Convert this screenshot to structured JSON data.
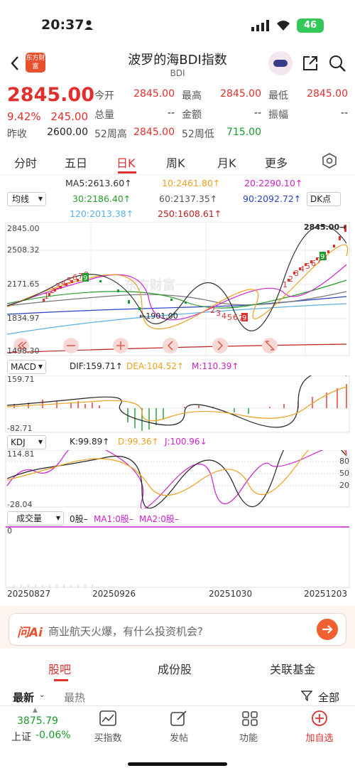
{
  "status": {
    "time": "20:37",
    "battery": "46"
  },
  "header": {
    "title": "波罗的海BDI指数",
    "subtitle": "BDI",
    "logo": "东方财富"
  },
  "quote": {
    "price": "2845.00",
    "pct": "9.42%",
    "change": "245.00",
    "prev_close_label": "昨收",
    "prev_close": "2600.00",
    "open_label": "今开",
    "open": "2845.00",
    "high_label": "最高",
    "high": "2845.00",
    "low_label": "最低",
    "low": "2845.00",
    "volume_label": "总量",
    "volume": "--",
    "amount_label": "金额",
    "amount": "--",
    "amplitude_label": "振幅",
    "amplitude": "--",
    "w52h_label": "52周高",
    "w52h": "2845.00",
    "w52l_label": "52周低",
    "w52l": "715.00"
  },
  "tabs": [
    "分时",
    "五日",
    "日K",
    "周K",
    "月K",
    "更多"
  ],
  "ma": {
    "ma5": "MA5:2613.60↑",
    "ma10": "10:2461.80↑",
    "ma20": "20:2290.10↑",
    "ma30": "30:2186.40↑",
    "ma60": "60:2137.35↑",
    "ma90": "90:2092.72↑",
    "ma120": "120:2013.38↑",
    "ma250": "250:1608.61↑",
    "select": "均线",
    "dk": "DK点"
  },
  "price_axis": {
    "top": "2845.00",
    "v2": "2508.32",
    "v3": "2171.65",
    "v4": "1834.97",
    "bottom": "1498.30",
    "hi_marker": "2845.00→",
    "lo_marker": "←1901.00"
  },
  "macd": {
    "select": "MACD",
    "dif": "DIF:159.71↑",
    "dea": "DEA:104.52↑",
    "m": "M:110.39↑",
    "top": "159.71",
    "bottom": "-82.71"
  },
  "kdj": {
    "select": "KDJ",
    "k": "K:99.89↑",
    "d": "D:99.36↑",
    "j": "J:100.96↓",
    "top": "114.81",
    "bottom": "-28.04",
    "l80": "80",
    "l50": "50",
    "l20": "20"
  },
  "vol": {
    "select": "成交量",
    "v": "0股–",
    "ma1": "MA1:0股–",
    "ma2": "MA2:0股–",
    "zero": "0"
  },
  "dates": [
    "20250827",
    "20250926",
    "20251030",
    "20251203"
  ],
  "ai": {
    "brand": "问Ai",
    "placeholder": "商业航天火爆，有什么投资机会?"
  },
  "section_tabs": [
    "股吧",
    "成份股",
    "关联基金"
  ],
  "sort": {
    "latest": "最新",
    "hot": "最热",
    "all": "全部"
  },
  "bottom_nav": {
    "index_value": "3875.79",
    "index_name": "上证",
    "index_change": "-0.06%",
    "items": [
      "买指数",
      "发帖",
      "功能",
      "加自选"
    ]
  },
  "colors": {
    "up": "#e0302d",
    "down": "#1a9a2b",
    "ma5": "#333333",
    "ma10": "#f0a020",
    "ma20": "#d020d0",
    "ma30": "#2a9a2a",
    "ma60": "#777777",
    "ma90": "#2a40c8",
    "ma120": "#5ab0e8",
    "ma250": "#c02020"
  }
}
